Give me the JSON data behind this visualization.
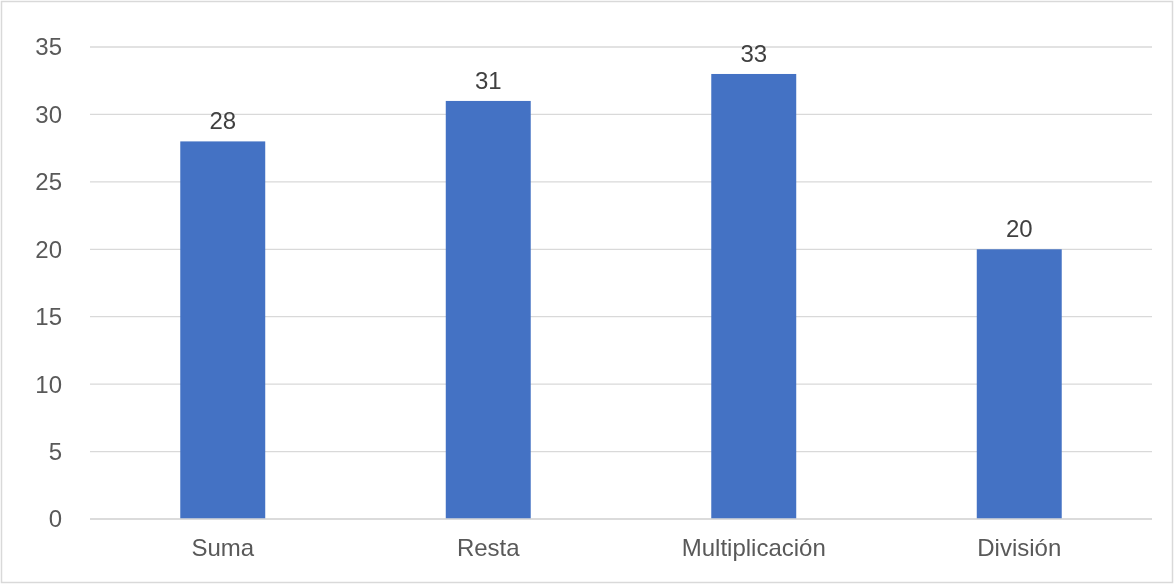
{
  "chart_data": {
    "type": "bar",
    "categories": [
      "Suma",
      "Resta",
      "Multiplicación",
      "División"
    ],
    "values": [
      28,
      31,
      33,
      20
    ],
    "color": "#4472c4",
    "ylim": [
      0,
      35
    ],
    "yticks": [
      0,
      5,
      10,
      15,
      20,
      25,
      30,
      35
    ],
    "grid": "y",
    "data_labels": true
  }
}
